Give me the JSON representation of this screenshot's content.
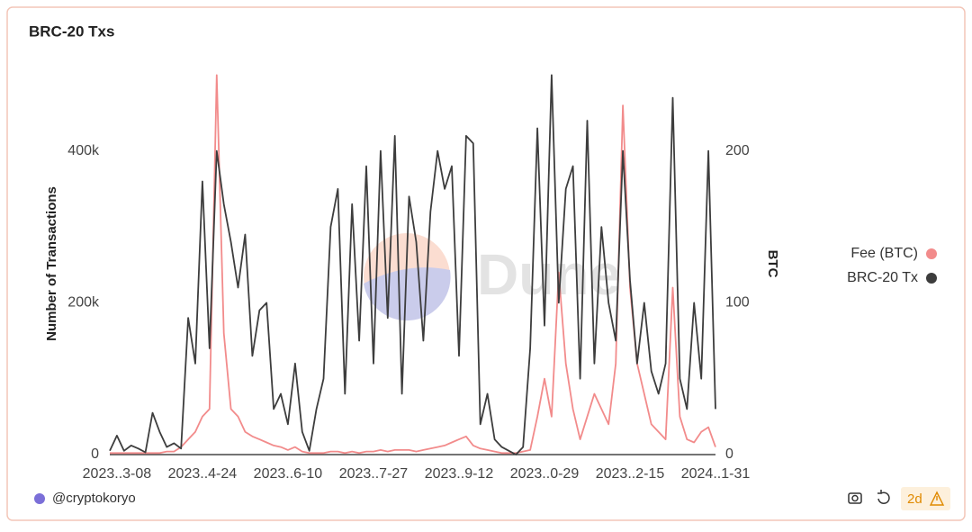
{
  "chart_data": {
    "type": "line",
    "title": "BRC-20 Txs",
    "watermark": "Dune",
    "categories": [
      null,
      "2023..3-08",
      null,
      null,
      null,
      null,
      null,
      null,
      null,
      null,
      null,
      null,
      null,
      "2023..4-24",
      null,
      null,
      null,
      null,
      null,
      null,
      null,
      null,
      null,
      null,
      null,
      "2023..6-10",
      null,
      null,
      null,
      null,
      null,
      null,
      null,
      null,
      null,
      null,
      null,
      "2023..7-27",
      null,
      null,
      null,
      null,
      null,
      null,
      null,
      null,
      null,
      null,
      null,
      "2023..9-12",
      null,
      null,
      null,
      null,
      null,
      null,
      null,
      null,
      null,
      null,
      null,
      "2023..0-29",
      null,
      null,
      null,
      null,
      null,
      null,
      null,
      null,
      null,
      null,
      null,
      "2023..2-15",
      null,
      null,
      null,
      null,
      null,
      null,
      null,
      null,
      null,
      null,
      null,
      "2024..1-31"
    ],
    "y_label": "Number of Transactions",
    "y2_label": "BTC",
    "series": [
      {
        "name": "Fee (BTC)",
        "color": "#f28b8b",
        "axis": "y2",
        "values": [
          1,
          1,
          1,
          1,
          1,
          1,
          1,
          1,
          2,
          2,
          5,
          10,
          15,
          25,
          30,
          250,
          80,
          30,
          25,
          15,
          12,
          10,
          8,
          6,
          5,
          3,
          5,
          2,
          1,
          1,
          1,
          2,
          2,
          1,
          2,
          1,
          2,
          2,
          3,
          2,
          3,
          3,
          3,
          2,
          3,
          4,
          5,
          6,
          8,
          10,
          12,
          6,
          4,
          3,
          2,
          1,
          1,
          1,
          2,
          3,
          25,
          50,
          25,
          120,
          60,
          30,
          10,
          25,
          40,
          30,
          20,
          60,
          230,
          110,
          60,
          40,
          20,
          15,
          10,
          110,
          25,
          10,
          8,
          15,
          18,
          5
        ]
      },
      {
        "name": "BRC-20 Tx",
        "color": "#3d3d3d",
        "values": [
          5000,
          25000,
          5000,
          12000,
          8000,
          3000,
          55000,
          30000,
          10000,
          15000,
          8000,
          180000,
          120000,
          360000,
          140000,
          400000,
          330000,
          280000,
          220000,
          290000,
          130000,
          190000,
          200000,
          60000,
          80000,
          40000,
          120000,
          30000,
          5000,
          60000,
          100000,
          300000,
          350000,
          80000,
          330000,
          150000,
          380000,
          120000,
          400000,
          180000,
          420000,
          80000,
          340000,
          280000,
          150000,
          320000,
          400000,
          350000,
          380000,
          130000,
          420000,
          410000,
          40000,
          80000,
          20000,
          10000,
          5000,
          0,
          10000,
          140000,
          430000,
          170000,
          500000,
          200000,
          350000,
          380000,
          100000,
          440000,
          120000,
          300000,
          200000,
          150000,
          400000,
          230000,
          120000,
          200000,
          110000,
          80000,
          120000,
          470000,
          100000,
          60000,
          200000,
          100000,
          400000,
          60000
        ]
      }
    ],
    "ylim": [
      0,
      510000
    ],
    "yticks": [
      {
        "value": 0,
        "label": "0"
      },
      {
        "value": 200000,
        "label": "200k"
      },
      {
        "value": 400000,
        "label": "400k"
      }
    ],
    "y2lim": [
      0,
      255
    ],
    "y2ticks": [
      0,
      100,
      200
    ],
    "grid": false,
    "legend": "right"
  },
  "footer": {
    "author": "@cryptokoryo",
    "age": "2d"
  }
}
